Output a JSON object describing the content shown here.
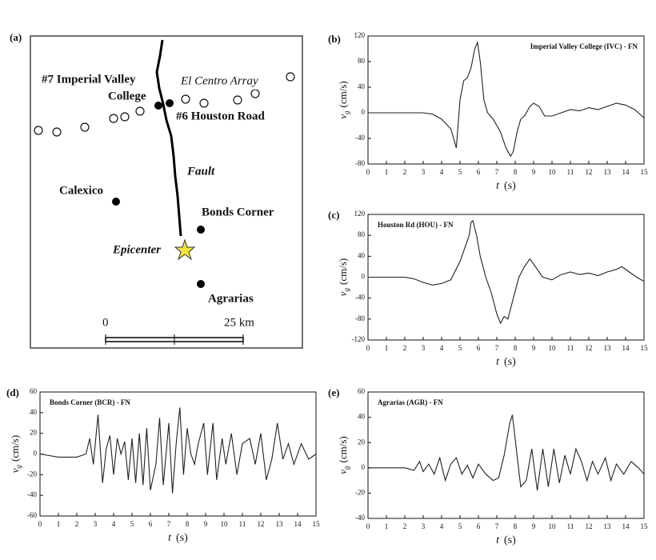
{
  "map": {
    "panel": "(a)",
    "labels": {
      "ivc1": "#7 Imperial Valley",
      "ivc2": "College",
      "array": "El Centro Array",
      "hou": "#6 Houston Road",
      "fault": "Fault",
      "calexico": "Calexico",
      "bonds": "Bonds Corner",
      "epicenter": "Epicenter",
      "agrarias": "Agrarias",
      "scale0": "0",
      "scale1": "25 km"
    }
  },
  "chart_data": [
    {
      "type": "line",
      "panel": "(b)",
      "title": "Imperial Valley College (IVC) - FN",
      "ylabel": {
        "symbol": "v",
        "subscript": "g",
        "unit": "(cm/s)"
      },
      "xlabel": {
        "symbol": "t",
        "unit": "(s)"
      },
      "color": "#222222",
      "xlim": [
        0,
        15
      ],
      "xticks": [
        0,
        1,
        2,
        3,
        4,
        5,
        6,
        7,
        8,
        9,
        10,
        11,
        12,
        13,
        14,
        15
      ],
      "ylim": [
        -80,
        120
      ],
      "yticks": [
        -80,
        -40,
        0,
        40,
        80,
        120
      ],
      "x": [
        0,
        3,
        3.5,
        4,
        4.5,
        4.8,
        5,
        5.2,
        5.4,
        5.6,
        5.8,
        5.95,
        6.1,
        6.3,
        6.5,
        6.8,
        7.2,
        7.5,
        7.75,
        7.9,
        8.1,
        8.3,
        8.5,
        8.8,
        9,
        9.3,
        9.6,
        10,
        10.5,
        11,
        11.5,
        12,
        12.5,
        13,
        13.5,
        14,
        14.5,
        15
      ],
      "values": [
        0,
        0,
        -2,
        -10,
        -25,
        -55,
        20,
        50,
        55,
        70,
        100,
        110,
        80,
        20,
        0,
        -10,
        -30,
        -55,
        -68,
        -60,
        -30,
        -10,
        -5,
        10,
        15,
        10,
        -5,
        -5,
        0,
        5,
        3,
        8,
        5,
        10,
        15,
        12,
        5,
        -8
      ]
    },
    {
      "type": "line",
      "panel": "(c)",
      "title": "Houston Rd (HOU) - FN",
      "ylabel": {
        "symbol": "v",
        "subscript": "g",
        "unit": "(cm/s)"
      },
      "xlabel": {
        "symbol": "t",
        "unit": "(s)"
      },
      "color": "#222222",
      "xlim": [
        0,
        15
      ],
      "xticks": [
        0,
        1,
        2,
        3,
        4,
        5,
        6,
        7,
        8,
        9,
        10,
        11,
        12,
        13,
        14,
        15
      ],
      "ylim": [
        -120,
        120
      ],
      "yticks": [
        -120,
        -80,
        -40,
        0,
        40,
        80,
        120
      ],
      "x": [
        0,
        2,
        2.5,
        3,
        3.5,
        4,
        4.5,
        5,
        5.3,
        5.5,
        5.6,
        5.7,
        5.9,
        6.1,
        6.4,
        6.7,
        7,
        7.2,
        7.4,
        7.6,
        7.9,
        8.2,
        8.5,
        8.8,
        9.1,
        9.5,
        10,
        10.5,
        11,
        11.5,
        12,
        12.5,
        13,
        13.5,
        13.8,
        14.2,
        14.6,
        15
      ],
      "values": [
        0,
        0,
        -3,
        -10,
        -15,
        -12,
        -5,
        30,
        60,
        80,
        105,
        108,
        80,
        40,
        0,
        -30,
        -70,
        -88,
        -75,
        -80,
        -40,
        0,
        20,
        35,
        20,
        0,
        -5,
        5,
        10,
        5,
        8,
        3,
        10,
        15,
        20,
        10,
        0,
        -8
      ]
    },
    {
      "type": "line",
      "panel": "(d)",
      "title": "Bonds Corner (BCR) - FN",
      "ylabel": {
        "symbol": "v",
        "subscript": "g",
        "unit": "(cm/s)"
      },
      "xlabel": {
        "symbol": "t",
        "unit": "(s)"
      },
      "color": "#222222",
      "xlim": [
        0,
        15
      ],
      "xticks": [
        0,
        1,
        2,
        3,
        4,
        5,
        6,
        7,
        8,
        9,
        10,
        11,
        12,
        13,
        14,
        15
      ],
      "ylim": [
        -60,
        60
      ],
      "yticks": [
        -60,
        -40,
        -20,
        0,
        20,
        40,
        60
      ],
      "x": [
        0,
        1,
        2,
        2.5,
        2.7,
        2.9,
        3.15,
        3.4,
        3.6,
        3.8,
        4,
        4.2,
        4.4,
        4.6,
        4.8,
        5,
        5.2,
        5.4,
        5.6,
        5.8,
        6,
        6.3,
        6.5,
        6.7,
        6.9,
        7,
        7.2,
        7.4,
        7.6,
        7.8,
        8,
        8.2,
        8.4,
        8.6,
        8.9,
        9.1,
        9.4,
        9.6,
        9.9,
        10.1,
        10.4,
        10.7,
        11,
        11.4,
        11.7,
        12,
        12.3,
        12.6,
        12.9,
        13.2,
        13.5,
        13.8,
        14.2,
        14.6,
        15
      ],
      "values": [
        0,
        -3,
        -3,
        0,
        15,
        -10,
        38,
        -28,
        5,
        18,
        -20,
        15,
        0,
        12,
        -25,
        15,
        -28,
        20,
        -30,
        25,
        -35,
        -10,
        35,
        -30,
        10,
        30,
        -38,
        10,
        45,
        -20,
        25,
        0,
        -10,
        10,
        30,
        -20,
        30,
        -25,
        15,
        -10,
        20,
        -20,
        10,
        15,
        -10,
        20,
        -25,
        -5,
        30,
        -5,
        10,
        -10,
        10,
        -5,
        0
      ]
    },
    {
      "type": "line",
      "panel": "(e)",
      "title": "Agrarias (AGR) - FN",
      "ylabel": {
        "symbol": "v",
        "subscript": "g",
        "unit": "(cm/s)"
      },
      "xlabel": {
        "symbol": "t",
        "unit": "(s)"
      },
      "color": "#222222",
      "xlim": [
        0,
        15
      ],
      "xticks": [
        0,
        1,
        2,
        3,
        4,
        5,
        6,
        7,
        8,
        9,
        10,
        11,
        12,
        13,
        14,
        15
      ],
      "ylim": [
        -40,
        60
      ],
      "yticks": [
        -40,
        -20,
        0,
        20,
        40,
        60
      ],
      "x": [
        0,
        2,
        2.5,
        2.8,
        3,
        3.3,
        3.6,
        3.9,
        4.2,
        4.5,
        4.8,
        5.1,
        5.4,
        5.7,
        6,
        6.4,
        6.8,
        7.1,
        7.4,
        7.7,
        7.85,
        8.1,
        8.3,
        8.6,
        8.9,
        9.2,
        9.5,
        9.8,
        10.1,
        10.4,
        10.7,
        11,
        11.3,
        11.6,
        11.9,
        12.2,
        12.5,
        12.9,
        13.2,
        13.5,
        13.9,
        14.3,
        14.7,
        15
      ],
      "values": [
        0,
        0,
        -2,
        5,
        -3,
        3,
        -5,
        8,
        -10,
        3,
        8,
        -5,
        2,
        -8,
        3,
        -5,
        -10,
        -8,
        10,
        35,
        42,
        10,
        -15,
        -10,
        15,
        -18,
        15,
        -15,
        15,
        -12,
        10,
        -5,
        15,
        5,
        -10,
        5,
        -5,
        8,
        -10,
        3,
        -5,
        5,
        0,
        -5
      ]
    }
  ]
}
